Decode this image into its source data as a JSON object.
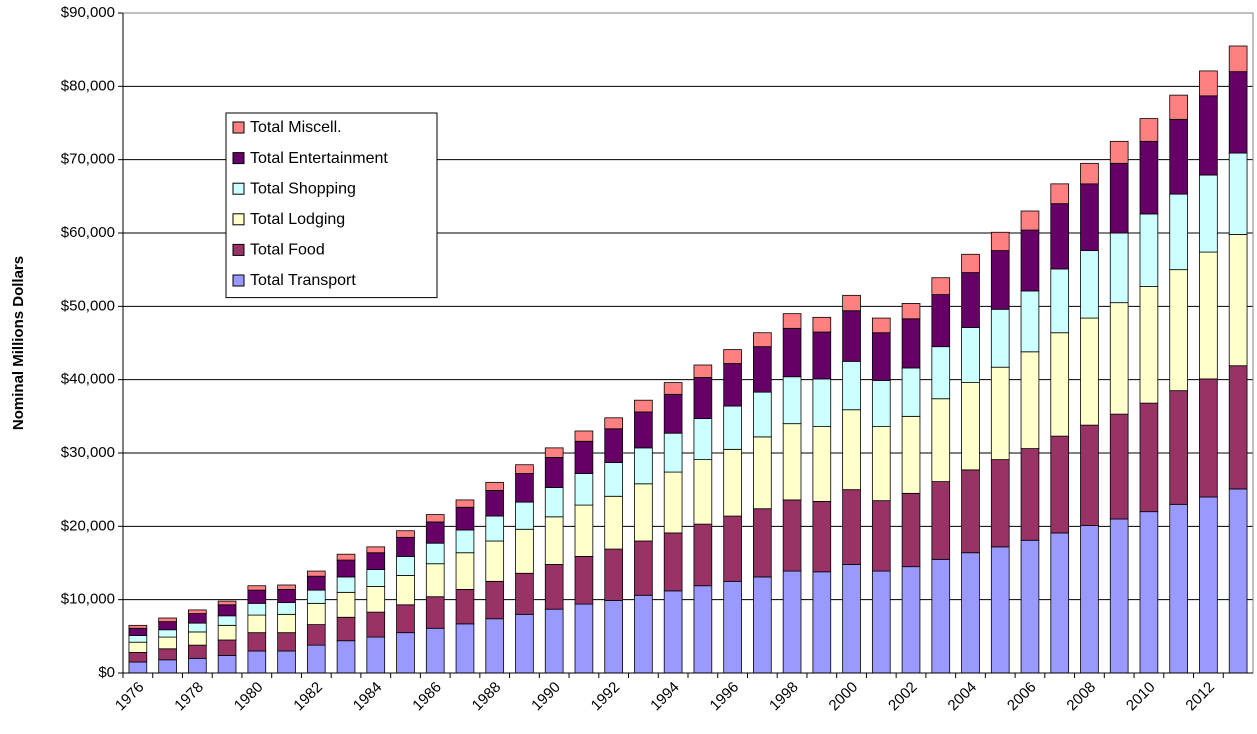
{
  "chart_data": {
    "type": "stacked_bar",
    "y_label": "Nominal Millions Dollars",
    "categories": [
      "1976",
      null,
      "1978",
      null,
      "1980",
      null,
      "1982",
      null,
      "1984",
      null,
      "1986",
      null,
      "1988",
      null,
      "1990",
      null,
      "1992",
      null,
      "1994",
      null,
      "1996",
      null,
      "1998",
      null,
      "2000",
      null,
      "2002",
      null,
      "2004",
      null,
      "2006",
      null,
      "2008",
      null,
      "2010",
      null,
      "2012",
      null
    ],
    "series": [
      {
        "name": "Total Transport",
        "color": "#9999ff",
        "values": [
          1500,
          1800,
          2000,
          2400,
          3000,
          3000,
          3800,
          4400,
          4900,
          5500,
          6100,
          6700,
          7400,
          8000,
          8700,
          9400,
          9900,
          10600,
          11200,
          11900,
          12500,
          13100,
          13900,
          13800,
          14800,
          13900,
          14500,
          15500,
          16400,
          17200,
          18100,
          19100,
          20100,
          21000,
          22000,
          23000,
          24000,
          25100
        ]
      },
      {
        "name": "Total Food",
        "color": "#993366",
        "values": [
          1300,
          1500,
          1800,
          2100,
          2500,
          2500,
          2800,
          3200,
          3400,
          3800,
          4300,
          4700,
          5100,
          5600,
          6100,
          6500,
          7000,
          7400,
          7900,
          8400,
          8900,
          9300,
          9700,
          9600,
          10200,
          9600,
          10000,
          10600,
          11300,
          11900,
          12500,
          13200,
          13700,
          14300,
          14800,
          15500,
          16100,
          16800
        ]
      },
      {
        "name": "Total Lodging",
        "color": "#ffffcc",
        "values": [
          1400,
          1600,
          1800,
          2000,
          2400,
          2500,
          2900,
          3400,
          3500,
          4000,
          4500,
          5000,
          5500,
          6000,
          6500,
          7000,
          7200,
          7800,
          8300,
          8800,
          9100,
          9800,
          10400,
          10200,
          10900,
          10100,
          10500,
          11300,
          11900,
          12600,
          13200,
          14100,
          14600,
          15200,
          15900,
          16500,
          17300,
          17900
        ]
      },
      {
        "name": "Total Shopping",
        "color": "#ccffff",
        "values": [
          900,
          1000,
          1200,
          1300,
          1600,
          1600,
          1800,
          2100,
          2300,
          2600,
          2800,
          3100,
          3400,
          3700,
          4000,
          4300,
          4600,
          4900,
          5300,
          5600,
          5900,
          6100,
          6400,
          6500,
          6600,
          6300,
          6600,
          7100,
          7500,
          7900,
          8300,
          8700,
          9200,
          9500,
          9900,
          10300,
          10500,
          11100
        ]
      },
      {
        "name": "Total Entertainment",
        "color": "#660066",
        "values": [
          1000,
          1100,
          1300,
          1500,
          1800,
          1800,
          1900,
          2300,
          2300,
          2600,
          2900,
          3100,
          3500,
          3900,
          4100,
          4400,
          4600,
          4900,
          5300,
          5600,
          5800,
          6200,
          6600,
          6400,
          6900,
          6500,
          6700,
          7100,
          7500,
          8000,
          8300,
          8900,
          9100,
          9500,
          9900,
          10200,
          10800,
          11100
        ]
      },
      {
        "name": "Total Miscell.",
        "color": "#ff8080",
        "values": [
          400,
          500,
          500,
          500,
          600,
          600,
          700,
          800,
          800,
          900,
          1000,
          1000,
          1100,
          1200,
          1300,
          1400,
          1500,
          1600,
          1600,
          1700,
          1900,
          1900,
          2000,
          2000,
          2100,
          2000,
          2100,
          2300,
          2500,
          2500,
          2600,
          2700,
          2800,
          3000,
          3100,
          3300,
          3400,
          3500
        ]
      }
    ],
    "ylim": [
      0,
      90000
    ],
    "yticks": [
      {
        "value": 0,
        "label": "$0"
      },
      {
        "value": 10000,
        "label": "$10,000"
      },
      {
        "value": 20000,
        "label": "$20,000"
      },
      {
        "value": 30000,
        "label": "$30,000"
      },
      {
        "value": 40000,
        "label": "$40,000"
      },
      {
        "value": 50000,
        "label": "$50,000"
      },
      {
        "value": 60000,
        "label": "$60,000"
      },
      {
        "value": 70000,
        "label": "$70,000"
      },
      {
        "value": 80000,
        "label": "$80,000"
      },
      {
        "value": 90000,
        "label": "$90,000"
      }
    ],
    "grid": true
  }
}
